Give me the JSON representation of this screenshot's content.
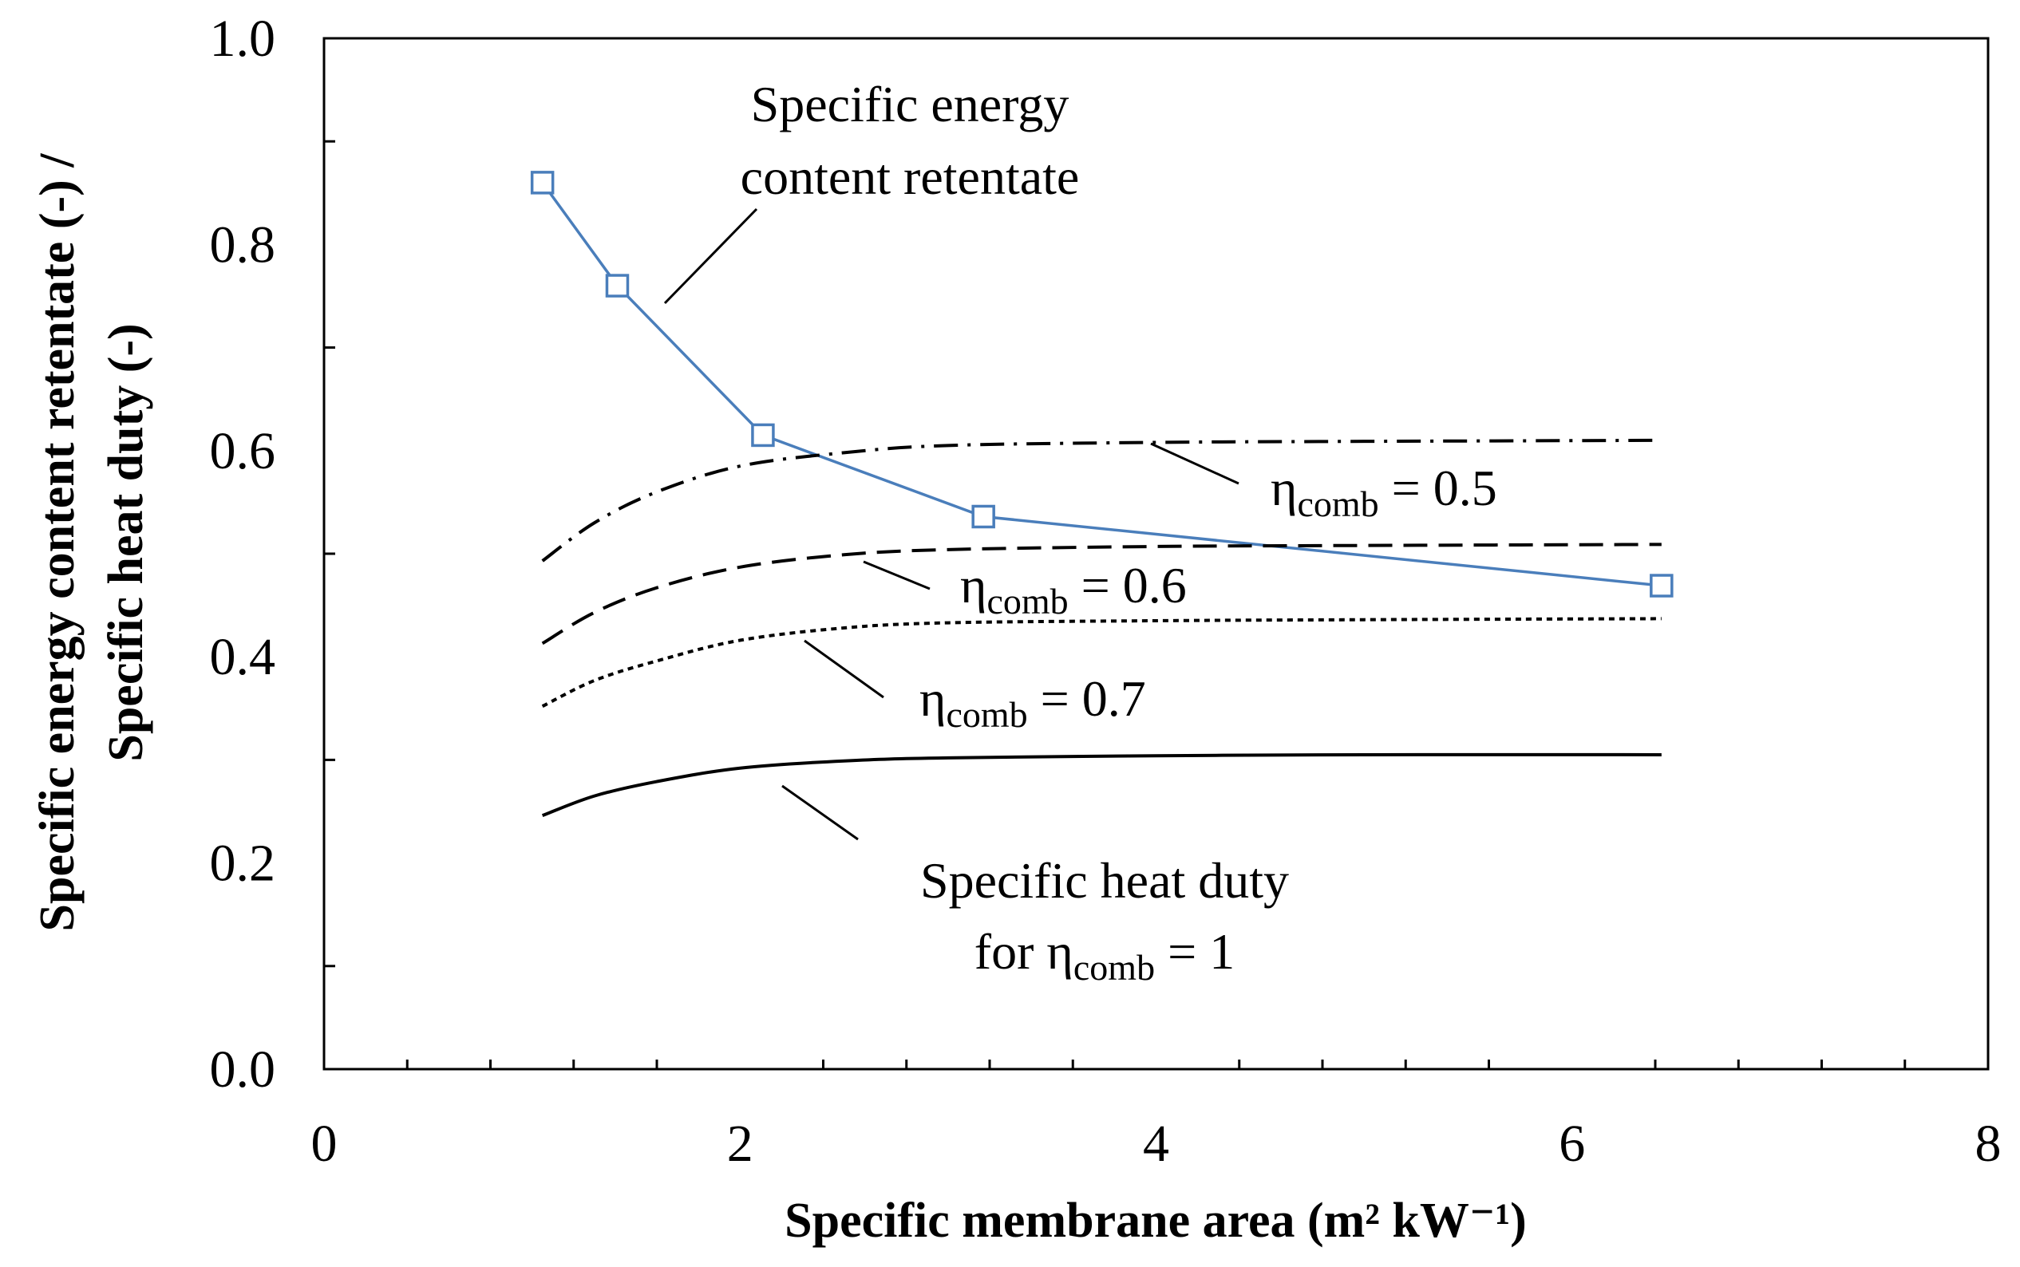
{
  "chart_data": {
    "type": "line",
    "title": "",
    "xlabel": "Specific membrane area (m² kW⁻¹)",
    "ylabel": [
      "Specific energy content retentate (-) /",
      "Specific heat duty (-)"
    ],
    "xlim": [
      0,
      8
    ],
    "ylim": [
      0.0,
      1.0
    ],
    "x_ticks": [
      "0",
      "2",
      "4",
      "6",
      "8"
    ],
    "y_ticks": [
      "0.0",
      "0.2",
      "0.4",
      "0.6",
      "0.8",
      "1.0"
    ],
    "grid": false,
    "legend": "none",
    "series": [
      {
        "name": "Specific energy content retentate",
        "color": "#4a7ebb",
        "style": "solid-with-square-markers",
        "x": [
          1.05,
          1.41,
          2.11,
          3.17,
          6.43
        ],
        "y": [
          0.86,
          0.76,
          0.615,
          0.536,
          0.469
        ]
      },
      {
        "name": "ηcomb = 0.5",
        "color": "#000000",
        "style": "dash-dot",
        "x": [
          1.05,
          1.3,
          1.6,
          2.0,
          2.5,
          3.0,
          4.0,
          5.0,
          6.43
        ],
        "y": [
          0.493,
          0.53,
          0.56,
          0.585,
          0.598,
          0.605,
          0.608,
          0.609,
          0.61
        ]
      },
      {
        "name": "ηcomb = 0.6",
        "color": "#000000",
        "style": "dashed",
        "x": [
          1.05,
          1.3,
          1.6,
          2.0,
          2.5,
          3.0,
          4.0,
          5.0,
          6.43
        ],
        "y": [
          0.413,
          0.443,
          0.467,
          0.487,
          0.499,
          0.504,
          0.507,
          0.508,
          0.509
        ]
      },
      {
        "name": "ηcomb = 0.7",
        "color": "#000000",
        "style": "dotted",
        "x": [
          1.05,
          1.3,
          1.6,
          2.0,
          2.5,
          3.0,
          4.0,
          5.0,
          6.43
        ],
        "y": [
          0.352,
          0.377,
          0.396,
          0.416,
          0.428,
          0.433,
          0.435,
          0.436,
          0.437
        ]
      },
      {
        "name": "Specific heat duty for ηcomb = 1",
        "color": "#000000",
        "style": "solid",
        "x": [
          1.05,
          1.3,
          1.6,
          2.0,
          2.5,
          3.0,
          4.0,
          5.0,
          6.43
        ],
        "y": [
          0.246,
          0.265,
          0.279,
          0.292,
          0.299,
          0.302,
          0.304,
          0.305,
          0.305
        ]
      }
    ],
    "annotations": [
      {
        "id": "retentate",
        "lines": [
          "Specific energy",
          "content retentate"
        ]
      },
      {
        "id": "eta05",
        "prefix": "η",
        "sub": "comb",
        "suffix": " = 0.5"
      },
      {
        "id": "eta06",
        "prefix": "η",
        "sub": "comb",
        "suffix": " = 0.6"
      },
      {
        "id": "eta07",
        "prefix": "η",
        "sub": "comb",
        "suffix": " = 0.7"
      },
      {
        "id": "heatduty",
        "line1": "Specific heat duty",
        "line2_prefix": "for η",
        "line2_sub": "comb",
        "line2_suffix": " = 1"
      }
    ]
  }
}
